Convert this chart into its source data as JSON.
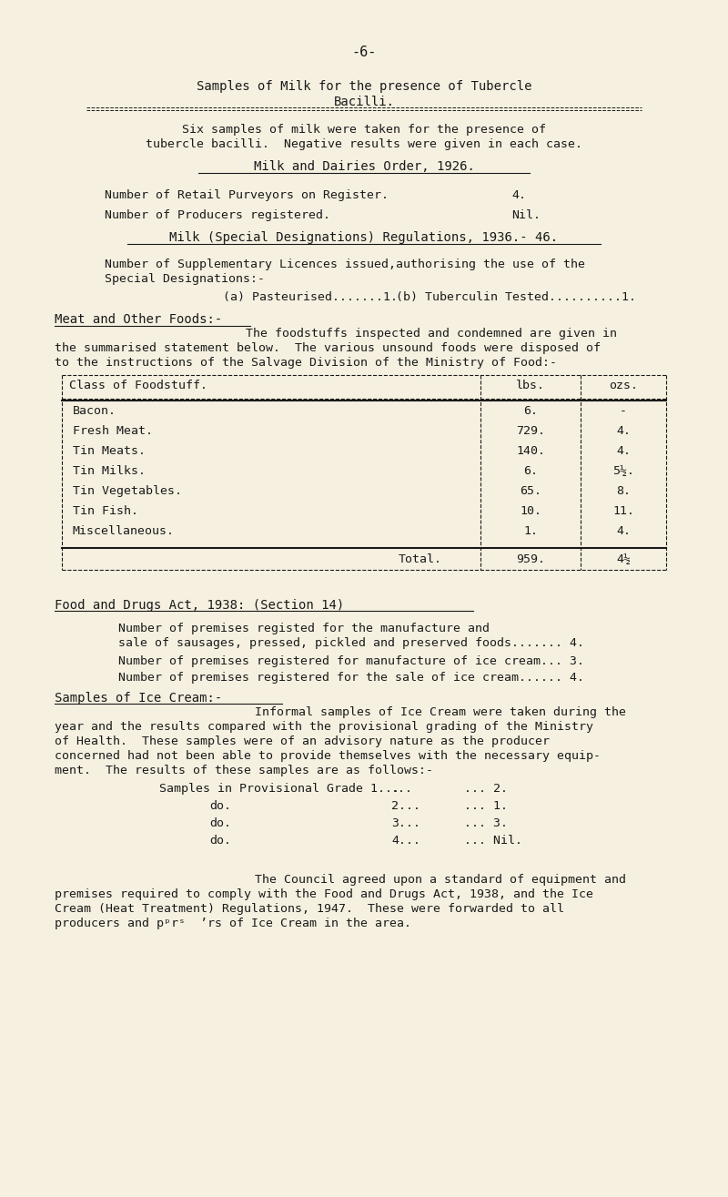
{
  "bg_color": "#f5f0e0",
  "text_color": "#1a1a1a",
  "page_number": "-6-",
  "section1_title_line1": "Samples of Milk for the presence of Tubercle",
  "section1_title_line2": "Bacilli.",
  "section1_body_line1": "Six samples of milk were taken for the presence of",
  "section1_body_line2": "tubercle bacilli.  Negative results were given in each case.",
  "section2_title": "Milk and Dairies Order, 1926.",
  "section2_line1_label": "Number of Retail Purveyors on Register.",
  "section2_line1_value": "4.",
  "section2_line2_label": "Number of Producers registered.",
  "section2_line2_value": "Nil.",
  "section3_title": "Milk (Special Designations) Regulations, 1936.- 46.",
  "section3_intro_line1": "Number of Supplementary Licences issued,authorising the use of the",
  "section3_intro_line2": "Special Designations:-",
  "section3_a": "(a) Pasteurised.......1.",
  "section3_b": "(b) Tuberculin Tested..........1.",
  "section4_title": "Meat and Other Foods:-",
  "section4_body_line1": "The foodstuffs inspected and condemned are given in",
  "section4_body_line2": "the summarised statement below.  The various unsound foods were disposed of",
  "section4_body_line3": "to the instructions of the Salvage Division of the Ministry of Food:-",
  "table_headers": [
    "Class of Foodstuff.",
    "lbs.",
    "ozs."
  ],
  "table_rows": [
    [
      "Bacon.",
      "6.",
      "-"
    ],
    [
      "Fresh Meat.",
      "729.",
      "4."
    ],
    [
      "Tin Meats.",
      "140.",
      "4."
    ],
    [
      "Tin Milks.",
      "6.",
      "5½."
    ],
    [
      "Tin Vegetables.",
      "65.",
      "8."
    ],
    [
      "Tin Fish.",
      "10.",
      "11."
    ],
    [
      "Miscellaneous.",
      "1.",
      "4."
    ]
  ],
  "table_total_label": "Total.",
  "table_total_lbs": "959.",
  "table_total_ozs": "4½",
  "section5_title": "Food and Drugs Act, 1938: (Section 14)",
  "section5_line1a": "Number of premises registed for the manufacture and",
  "section5_line1b": "sale of sausages, pressed, pickled and preserved foods....... 4.",
  "section5_line2": "Number of premises registered for manufacture of ice cream... 3.",
  "section5_line3": "Number of premises registered for the sale of ice cream...... 4.",
  "section6_title": "Samples of Ice Cream:-",
  "section6_body1": "Informal samples of Ice Cream were taken during the",
  "section6_body2": "year and the results compared with the provisional grading of the Ministry",
  "section6_body3": "of Health.  These samples were of an advisory nature as the producer",
  "section6_body4": "concerned had not been able to provide themselves with the necessary equip-",
  "section6_body5": "ment.  The results of these samples are as follows:-",
  "grade_label": "Samples in Provisional Grade 1...",
  "grade_dots": "...",
  "grade_rows": [
    [
      "Samples in Provisional Grade 1...",
      "...",
      "... 2."
    ],
    [
      "do.",
      "2...",
      "... 1."
    ],
    [
      "do.",
      "3...",
      "... 3."
    ],
    [
      "do.",
      "4...",
      "... Nil."
    ]
  ],
  "section6_closing1": "The Council agreed upon a standard of equipment and",
  "section6_closing2": "premises required to comply with the Food and Drugs Act, 1938, and the Ice",
  "section6_closing3": "Cream (Heat Treatment) Regulations, 1947.  These were forwarded to all",
  "section6_closing4": "producers and pᵖrˢ  ʼrs of Ice Cream in the area."
}
